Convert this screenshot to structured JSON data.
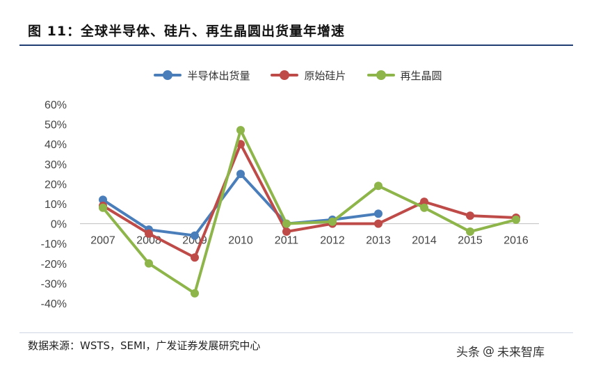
{
  "title": "图 11：全球半导体、硅片、再生晶圆出货量年增速",
  "source": "数据来源：WSTS，SEMI，广发证券发展研究中心",
  "watermark": {
    "left": "头条",
    "at": "@",
    "right": "未来智库"
  },
  "chart_data": {
    "type": "line",
    "categories": [
      "2007",
      "2008",
      "2009",
      "2010",
      "2011",
      "2012",
      "2013",
      "2014",
      "2015",
      "2016"
    ],
    "y_ticks": [
      "60%",
      "50%",
      "40%",
      "30%",
      "20%",
      "10%",
      "0%",
      "-10%",
      "-20%",
      "-30%",
      "-40%"
    ],
    "ylim": [
      -40,
      60
    ],
    "y_unit": "%",
    "grid": false,
    "legend_position": "top",
    "series": [
      {
        "name": "半导体出货量",
        "color": "#4a7ebb",
        "values": [
          12,
          -3,
          -6,
          25,
          0,
          2,
          5,
          null,
          null,
          null
        ]
      },
      {
        "name": "原始硅片",
        "color": "#be4b48",
        "values": [
          9,
          -5,
          -17,
          40,
          -4,
          0,
          0,
          11,
          4,
          3
        ]
      },
      {
        "name": "再生晶圆",
        "color": "#8db54a",
        "values": [
          8,
          -20,
          -35,
          47,
          0,
          1,
          19,
          8,
          -4,
          2
        ]
      }
    ]
  }
}
